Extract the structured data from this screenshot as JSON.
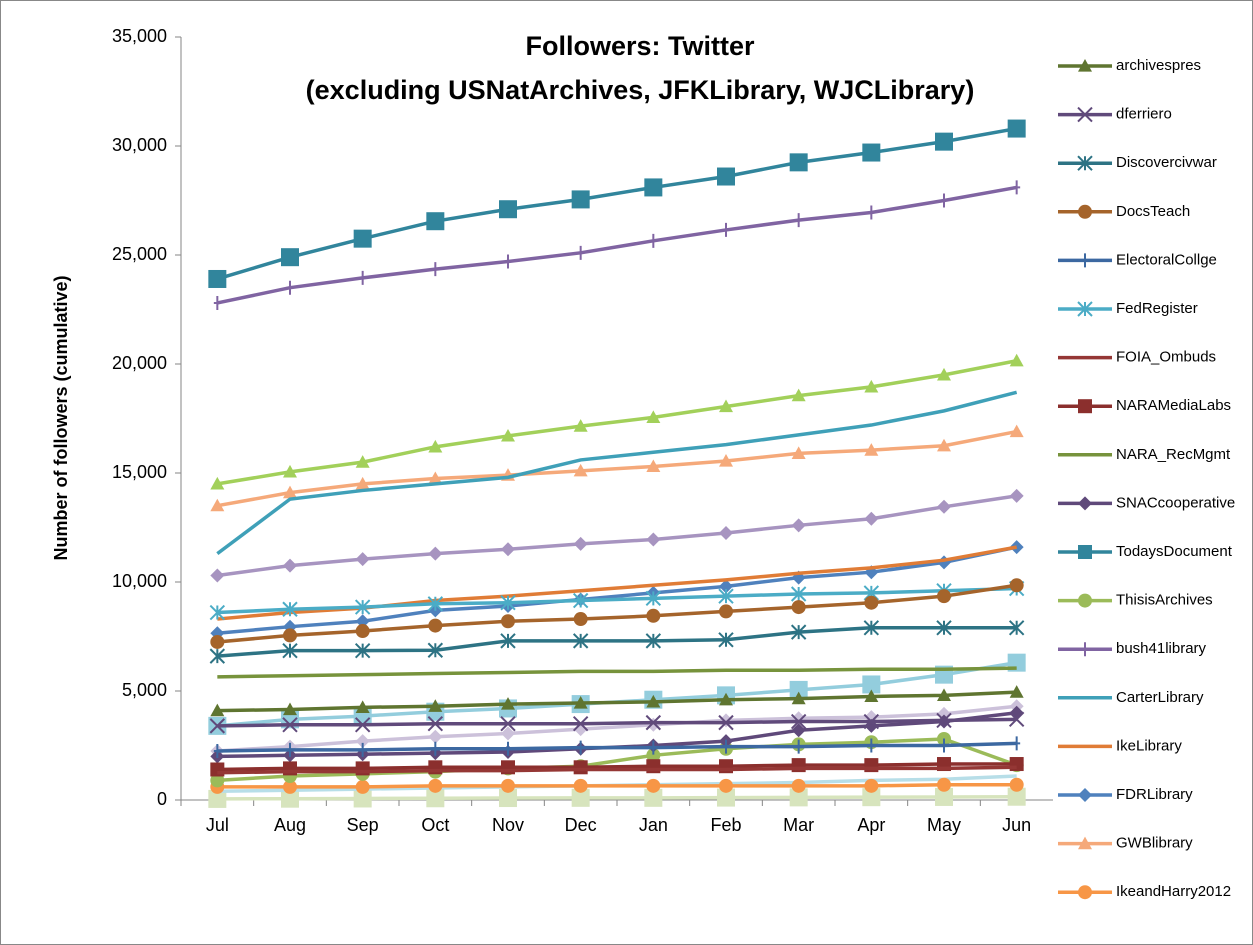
{
  "chart_data": {
    "type": "line",
    "title": [
      "Followers: Twitter",
      "(excluding USNatArchives, JFKLibrary, WJCLibrary)"
    ],
    "ylabel": "Number of followers  (cumulative)",
    "categories": [
      "Jul",
      "Aug",
      "Sep",
      "Oct",
      "Nov",
      "Dec",
      "Jan",
      "Feb",
      "Mar",
      "Apr",
      "May",
      "Jun"
    ],
    "ylim": [
      0,
      35000
    ],
    "yticks": [
      0,
      {
        "value": 5000,
        "label": "5,000"
      },
      {
        "value": 10000,
        "label": "10,000"
      },
      {
        "value": 15000,
        "label": "15,000"
      },
      {
        "value": 20000,
        "label": "20,000"
      },
      {
        "value": 25000,
        "label": "25,000"
      },
      {
        "value": 30000,
        "label": "30,000"
      },
      {
        "value": 35000,
        "label": "35,000"
      }
    ],
    "legend": "right",
    "series": [
      {
        "name": "archivespres",
        "color": "#5f7530",
        "marker": "triangle",
        "values": [
          4100,
          4150,
          4250,
          4300,
          4400,
          4450,
          4500,
          4600,
          4650,
          4750,
          4800,
          4950
        ]
      },
      {
        "name": "dferriero",
        "color": "#604a7b",
        "marker": "x",
        "values": [
          3400,
          3450,
          3450,
          3500,
          3500,
          3500,
          3550,
          3550,
          3600,
          3600,
          3650,
          3700
        ]
      },
      {
        "name": "Discovercivwar",
        "color": "#2d7384",
        "marker": "asterisk",
        "values": [
          6600,
          6850,
          6850,
          6870,
          7300,
          7300,
          7300,
          7350,
          7700,
          7900,
          7900,
          7900
        ]
      },
      {
        "name": "DocsTeach",
        "color": "#a5642b",
        "marker": "circle",
        "values": [
          7250,
          7550,
          7750,
          8000,
          8200,
          8300,
          8450,
          8650,
          8850,
          9050,
          9350,
          9850
        ]
      },
      {
        "name": "ElectoralCollge",
        "color": "#3c68a1",
        "marker": "plus",
        "values": [
          2250,
          2300,
          2300,
          2350,
          2350,
          2400,
          2400,
          2450,
          2450,
          2500,
          2500,
          2600
        ]
      },
      {
        "name": "FedRegister",
        "color": "#4bacc6",
        "marker": "asterisk",
        "values": [
          8600,
          8750,
          8850,
          9000,
          9050,
          9150,
          9250,
          9350,
          9450,
          9500,
          9600,
          9700
        ]
      },
      {
        "name": "FOIA_Ombuds",
        "color": "#953735",
        "marker": "none",
        "values": [
          1250,
          1300,
          1300,
          1350,
          1350,
          1400,
          1400,
          1400,
          1450,
          1450,
          1450,
          1500
        ]
      },
      {
        "name": "NARAMediaLabs",
        "color": "#8b2f2d",
        "marker": "square",
        "values": [
          1400,
          1450,
          1450,
          1500,
          1500,
          1500,
          1550,
          1550,
          1600,
          1600,
          1650,
          1650
        ]
      },
      {
        "name": "NARA_RecMgmt",
        "color": "#77933c",
        "marker": "none",
        "values": [
          5650,
          5700,
          5750,
          5800,
          5850,
          5900,
          5900,
          5950,
          5950,
          6000,
          6000,
          6050
        ]
      },
      {
        "name": "SNACcooperative",
        "color": "#5f497a",
        "marker": "diamond",
        "values": [
          2000,
          2050,
          2100,
          2150,
          2200,
          2350,
          2500,
          2700,
          3200,
          3400,
          3600,
          4000
        ]
      },
      {
        "name": "TodaysDocument",
        "color": "#31859c",
        "marker": "square",
        "values": [
          23900,
          24900,
          25750,
          26550,
          27100,
          27550,
          28100,
          28600,
          29250,
          29700,
          30200,
          30800
        ]
      },
      {
        "name": "ThisisArchives",
        "color": "#9bbb59",
        "marker": "circle",
        "values": [
          900,
          1100,
          1200,
          1300,
          1450,
          1550,
          2050,
          2350,
          2550,
          2650,
          2800,
          1600
        ]
      },
      {
        "name": "bush41library",
        "color": "#8064a2",
        "marker": "plus",
        "values": [
          22800,
          23500,
          23950,
          24350,
          24700,
          25100,
          25650,
          26150,
          26600,
          26950,
          27500,
          28100
        ]
      },
      {
        "name": "CarterLibrary",
        "color": "#3fa0b8",
        "marker": "none",
        "values": [
          11300,
          13800,
          14200,
          14500,
          14800,
          15600,
          15950,
          16300,
          16750,
          17200,
          17850,
          18700
        ]
      },
      {
        "name": "IkeLibrary",
        "color": "#e07c36",
        "marker": "none",
        "values": [
          8300,
          8600,
          8800,
          9150,
          9350,
          9600,
          9850,
          10100,
          10400,
          10650,
          11000,
          11600
        ]
      },
      {
        "name": "FDRLibrary",
        "color": "#4f81bd",
        "marker": "diamond",
        "values": [
          7650,
          7950,
          8200,
          8700,
          8900,
          9200,
          9500,
          9800,
          10200,
          10450,
          10900,
          11600
        ]
      },
      {
        "name": "GWBlibrary",
        "color": "#f5a97a",
        "marker": "triangle",
        "values": [
          13500,
          14100,
          14500,
          14750,
          14900,
          15100,
          15300,
          15550,
          15900,
          16050,
          16250,
          16900
        ]
      },
      {
        "name": "IkeandHarry2012",
        "color": "#f79646",
        "marker": "circle",
        "values": [
          600,
          600,
          600,
          650,
          650,
          650,
          650,
          650,
          650,
          650,
          700,
          700
        ]
      },
      {
        "color": "#a2d05a",
        "marker": "triangle",
        "values": [
          14500,
          15050,
          15500,
          16200,
          16700,
          17150,
          17550,
          18050,
          18550,
          18950,
          19500,
          20150
        ]
      },
      {
        "color": "#a794c0",
        "marker": "diamond",
        "values": [
          10300,
          10750,
          11050,
          11300,
          11500,
          11750,
          11950,
          12250,
          12600,
          12900,
          13450,
          13950
        ]
      },
      {
        "color": "#93cddd",
        "marker": "square",
        "values": [
          3400,
          3700,
          3850,
          4050,
          4200,
          4400,
          4600,
          4800,
          5050,
          5300,
          5750,
          6300
        ]
      },
      {
        "color": "#ccc1da",
        "marker": "diamond",
        "values": [
          2250,
          2450,
          2700,
          2900,
          3050,
          3250,
          3450,
          3650,
          3750,
          3800,
          3950,
          4300
        ]
      },
      {
        "color": "#b7dee8",
        "marker": "none",
        "values": [
          400,
          450,
          500,
          550,
          600,
          650,
          700,
          750,
          800,
          900,
          950,
          1100
        ]
      },
      {
        "color": "#d7e4bd",
        "marker": "square",
        "values": [
          50,
          60,
          70,
          80,
          90,
          100,
          100,
          110,
          120,
          130,
          140,
          150
        ]
      }
    ]
  }
}
